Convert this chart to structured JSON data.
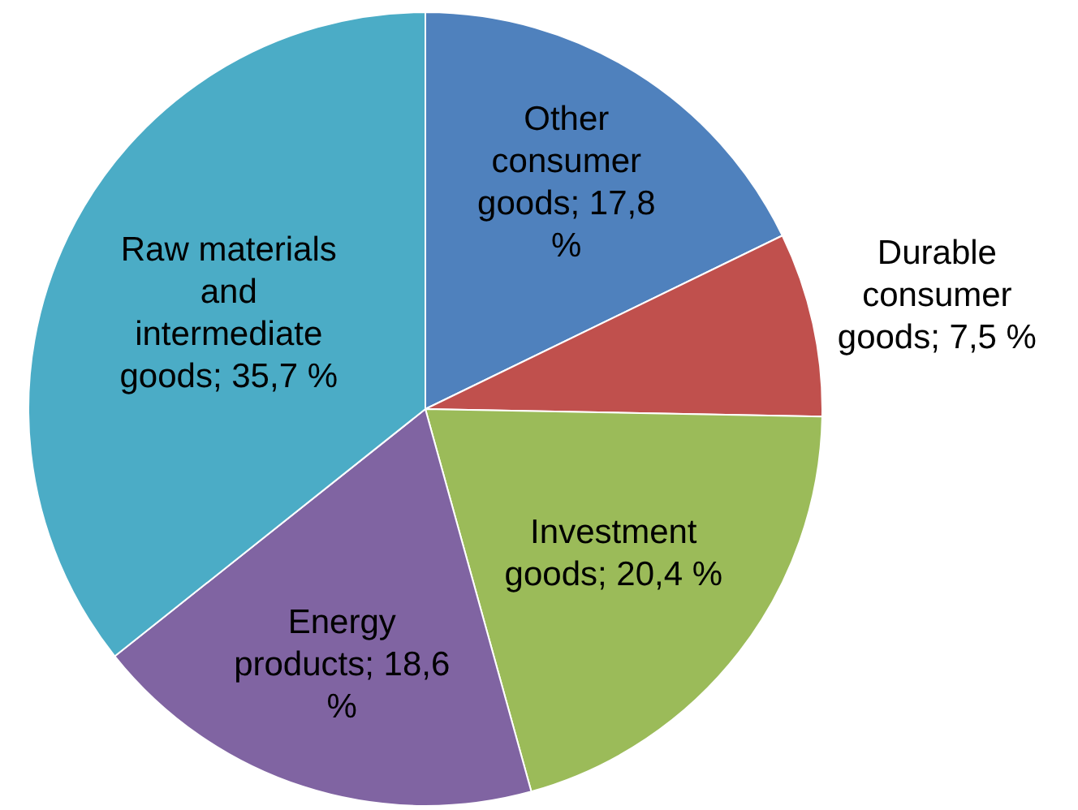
{
  "chart_data": {
    "type": "pie",
    "categories": [
      "Other consumer goods",
      "Durable consumer goods",
      "Investment goods",
      "Energy products",
      "Raw materials and intermediate goods"
    ],
    "values": [
      17.8,
      7.5,
      20.4,
      18.6,
      35.7
    ],
    "value_labels": [
      "17,8 %",
      "7,5 %",
      "20,4 %",
      "18,6 %",
      "35,7 %"
    ],
    "colors": [
      "#4f81bd",
      "#c0504d",
      "#9bbb59",
      "#8064a2",
      "#4bacc6"
    ],
    "legend": false
  }
}
